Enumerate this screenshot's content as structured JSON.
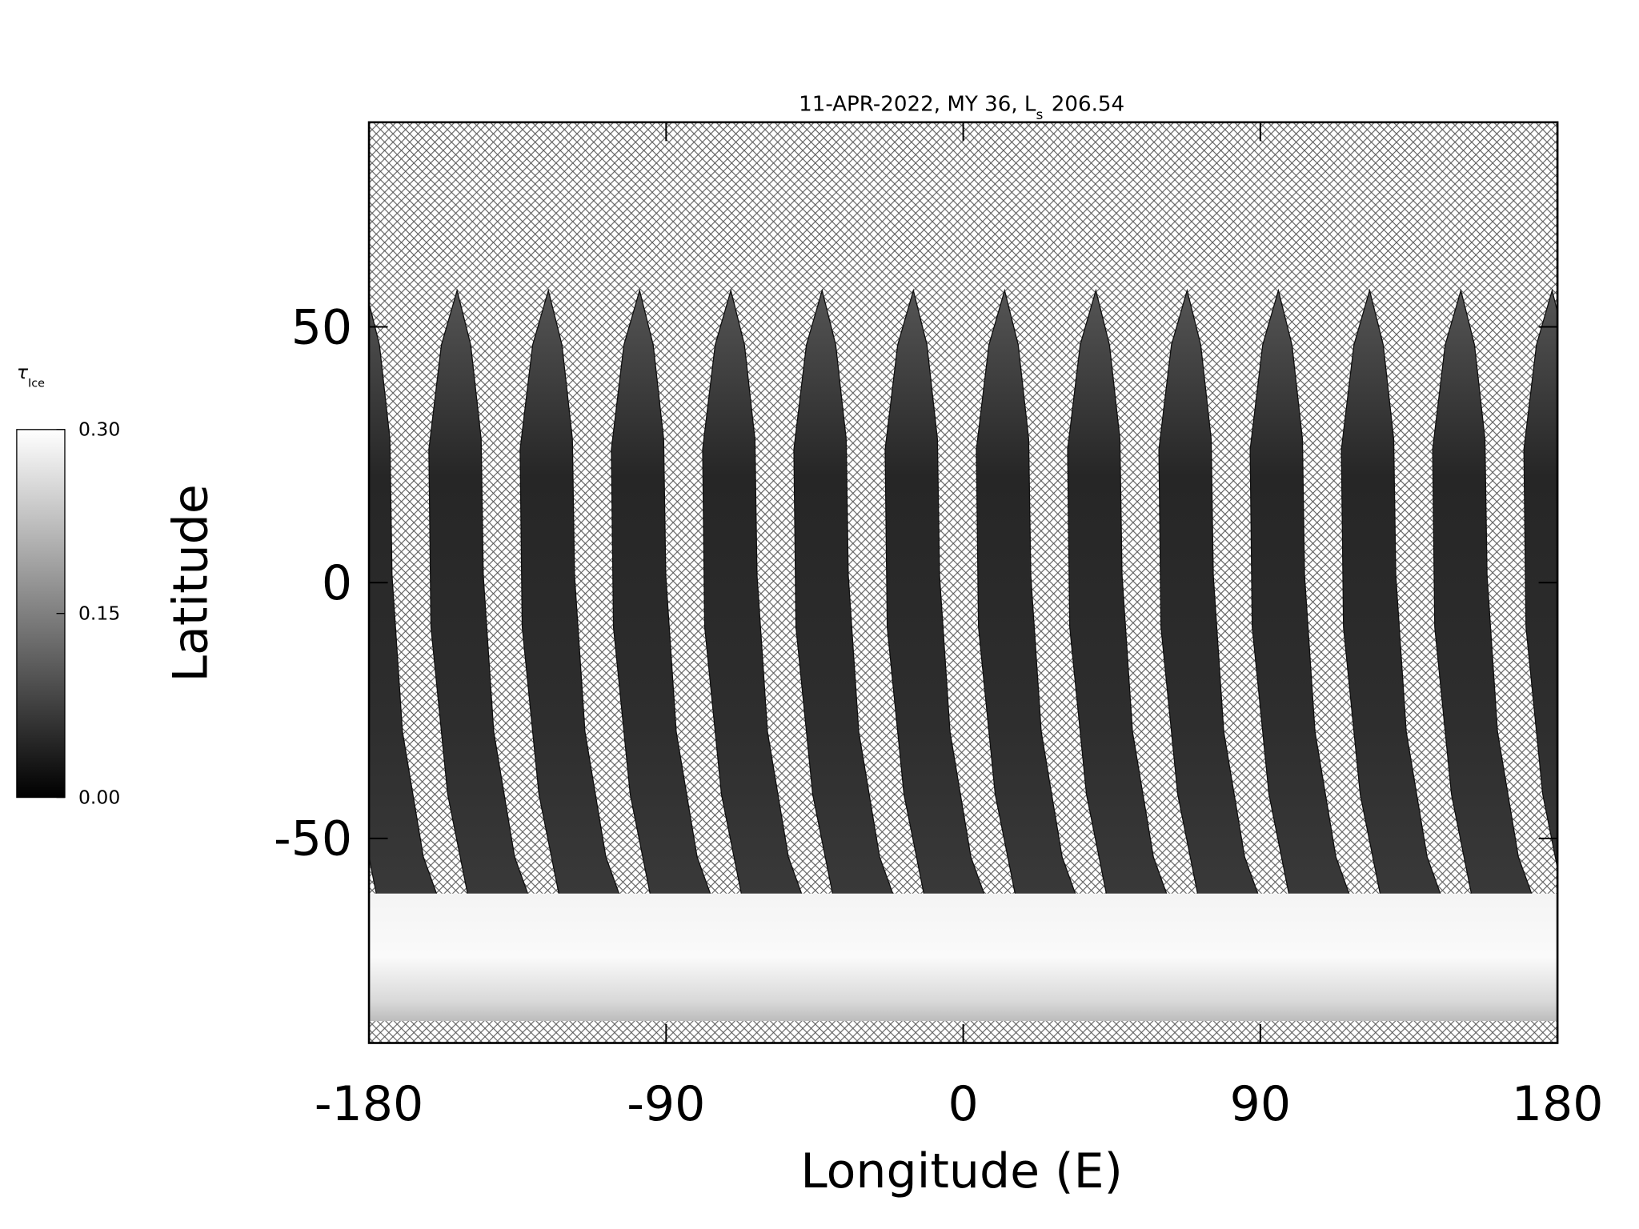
{
  "chart_data": {
    "type": "map",
    "title": {
      "text": "11-APR-2022, MY 36,  L",
      "subscript": "s",
      "value": "206.54"
    },
    "x_label": "Longitude (E)",
    "y_label": "Latitude",
    "xlim": [
      -180,
      180
    ],
    "xticks": [
      -180,
      -90,
      0,
      90,
      180
    ],
    "ylim": [
      -90,
      90
    ],
    "yticks": [
      -50,
      0,
      50
    ],
    "colorbar": {
      "label": {
        "symbol": "τ",
        "subscript": "Ice"
      },
      "lim": [
        0,
        0.3
      ],
      "ticks": [
        {
          "value": 0,
          "label": "0.00"
        },
        {
          "value": 0.15,
          "label": "0.15"
        },
        {
          "value": 0.3,
          "label": "0.30"
        }
      ]
    }
  }
}
